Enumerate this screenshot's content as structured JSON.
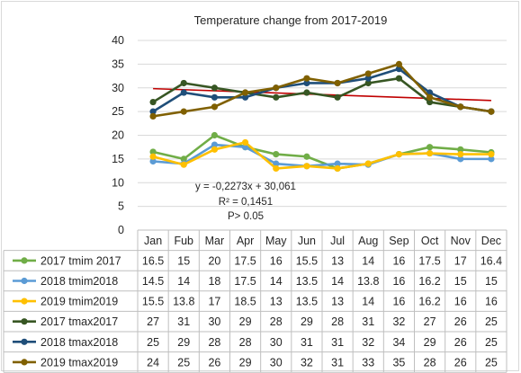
{
  "chart_data": {
    "type": "line",
    "title": "Temperature change from 2017-2019",
    "xlabel": "",
    "ylabel": "",
    "ylim": [
      0,
      40
    ],
    "yticks": [
      "0",
      "5",
      "10",
      "15",
      "20",
      "25",
      "30",
      "35",
      "40"
    ],
    "categories": [
      "Jan",
      "Fub",
      "Mar",
      "Apr",
      "May",
      "Jun",
      "Jul",
      "Aug",
      "Sep",
      "Oct",
      "Nov",
      "Dec"
    ],
    "series": [
      {
        "name": "2017 tmim 2017",
        "color": "#70ad47",
        "values": [
          16.5,
          15,
          20,
          17.5,
          16,
          15.5,
          13,
          14,
          16,
          17.5,
          17,
          16.4
        ],
        "labels": [
          "16.5",
          "15",
          "20",
          "17.5",
          "16",
          "15.5",
          "13",
          "14",
          "16",
          "17.5",
          "17",
          "16.4"
        ]
      },
      {
        "name": "2018 tmim2018",
        "color": "#5b9bd5",
        "values": [
          14.5,
          14,
          18,
          17.5,
          14,
          13.5,
          14,
          13.8,
          16,
          16.2,
          15,
          15
        ],
        "labels": [
          "14.5",
          "14",
          "18",
          "17.5",
          "14",
          "13.5",
          "14",
          "13.8",
          "16",
          "16.2",
          "15",
          "15"
        ]
      },
      {
        "name": "2019 tmim2019",
        "color": "#ffc000",
        "values": [
          15.5,
          13.8,
          17,
          18.5,
          13,
          13.5,
          13,
          14,
          16,
          16.2,
          16,
          16
        ],
        "labels": [
          "15.5",
          "13.8",
          "17",
          "18.5",
          "13",
          "13.5",
          "13",
          "14",
          "16",
          "16.2",
          "16",
          "16"
        ]
      },
      {
        "name": "2017 tmax2017",
        "color": "#375623",
        "values": [
          27,
          31,
          30,
          29,
          28,
          29,
          28,
          31,
          32,
          27,
          26,
          25
        ],
        "labels": [
          "27",
          "31",
          "30",
          "29",
          "28",
          "29",
          "28",
          "31",
          "32",
          "27",
          "26",
          "25"
        ]
      },
      {
        "name": "2018 tmax2018",
        "color": "#1f4e79",
        "values": [
          25,
          29,
          28,
          28,
          30,
          31,
          31,
          32,
          34,
          29,
          26,
          25
        ],
        "labels": [
          "25",
          "29",
          "28",
          "28",
          "30",
          "31",
          "31",
          "32",
          "34",
          "29",
          "26",
          "25"
        ]
      },
      {
        "name": "2019 tmax2019",
        "color": "#806000",
        "values": [
          24,
          25,
          26,
          29,
          30,
          32,
          31,
          33,
          35,
          28,
          26,
          25
        ],
        "labels": [
          "24",
          "25",
          "26",
          "29",
          "30",
          "32",
          "31",
          "33",
          "35",
          "28",
          "26",
          "25"
        ]
      }
    ],
    "trendline": {
      "color": "#c00000",
      "slope": -0.2273,
      "intercept": 30.061
    },
    "annotations": [
      "y = -0,2273x + 30,061",
      "R² = 0,1451",
      "P> 0.05"
    ],
    "legend": "data-table",
    "grid": true
  }
}
